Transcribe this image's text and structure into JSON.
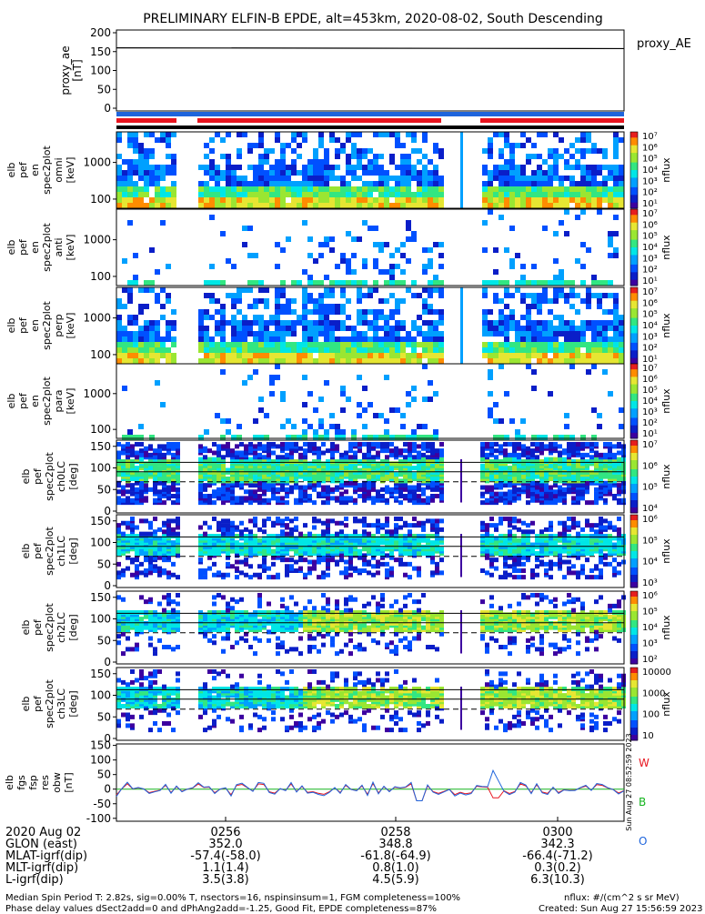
{
  "title": "PRELIMINARY ELFIN-B EPDE, alt=453km, 2020-08-02, South Descending",
  "panels": {
    "ae": {
      "ylabel": "proxy_ae\n[nT]",
      "right_label": "proxy_AE",
      "yticks": [
        "200",
        "150",
        "100",
        "50",
        "0"
      ]
    },
    "spec": [
      {
        "ylabel": "elb\npef\nen\nspec2plot\nomni\n[keV]",
        "yticks": [
          "1000",
          "100"
        ],
        "cbar_label": "nflux"
      },
      {
        "ylabel": "elb\npef\nen\nspec2plot\nanti\n[keV]",
        "yticks": [
          "1000",
          "100"
        ],
        "cbar_label": "nflux"
      },
      {
        "ylabel": "elb\npef\nen\nspec2plot\nperp\n[keV]",
        "yticks": [
          "1000",
          "100"
        ],
        "cbar_label": "nflux"
      },
      {
        "ylabel": "elb\npef\nen\nspec2plot\npara\n[keV]",
        "yticks": [
          "1000",
          "100"
        ],
        "cbar_label": "nflux"
      }
    ],
    "pa": [
      {
        "ylabel": "elb\npef\nspec2plot\nch0LC\n[deg]",
        "yticks": [
          "150",
          "100",
          "50",
          "0"
        ],
        "cbar_label": "nflux",
        "cbar_ticks": [
          "10⁷",
          "10⁶",
          "10⁵",
          "10⁴"
        ]
      },
      {
        "ylabel": "elb\npef\nspec2plot\nch1LC\n[deg]",
        "yticks": [
          "150",
          "100",
          "50",
          "0"
        ],
        "cbar_label": "nflux",
        "cbar_ticks": [
          "10⁶",
          "10⁵",
          "10⁴",
          "10³"
        ]
      },
      {
        "ylabel": "elb\npef\nspec2plot\nch2LC\n[deg]",
        "yticks": [
          "150",
          "100",
          "50",
          "0"
        ],
        "cbar_label": "nflux",
        "cbar_ticks": [
          "10⁶",
          "10⁵",
          "10⁴",
          "10³",
          "10²"
        ]
      },
      {
        "ylabel": "elb\npef\nspec2plot\nch3LC\n[deg]",
        "yticks": [
          "150",
          "100",
          "50",
          "0"
        ],
        "cbar_label": "nflux",
        "cbar_ticks": [
          "10000",
          "1000",
          "100",
          "10"
        ]
      }
    ],
    "spec_cbar_ticks": [
      "10⁷",
      "10⁶",
      "10⁵",
      "10⁴",
      "10³",
      "10²",
      "10¹"
    ],
    "fgs": {
      "ylabel": "elb\nfgs\nfsp\nres\nobw\n[nT]",
      "yticks": [
        "150",
        "100",
        "50",
        "0",
        "-50",
        "-100"
      ],
      "legend": [
        "W",
        "B",
        "O"
      ],
      "created_vertical": "Sun Aug 27 08:52:59 2023"
    }
  },
  "colors": {
    "red": "#e8141e",
    "blue": "#1e64dc",
    "green": "#14b41e",
    "axis": "#000000"
  },
  "footer": {
    "rows": [
      {
        "label": "2020 Aug 02",
        "values": [
          "0256",
          "0258",
          "0300"
        ]
      },
      {
        "label": "GLON (east)",
        "values": [
          "352.0",
          "348.8",
          "342.3"
        ]
      },
      {
        "label": "MLAT-igrf(dip)",
        "values": [
          "-57.4(-58.0)",
          "-61.8(-64.9)",
          "-66.4(-71.2)"
        ]
      },
      {
        "label": "MLT-igrf(dip)",
        "values": [
          "1.1(1.4)",
          "0.8(1.0)",
          "0.3(0.2)"
        ]
      },
      {
        "label": "L-igrf(dip)",
        "values": [
          "3.5(3.8)",
          "4.5(5.9)",
          "6.3(10.3)"
        ]
      }
    ],
    "note1": "Median Spin Period T: 2.82s, sig=0.00% T, nsectors=16, nspinsinsum=1, FGM completeness=100%",
    "note2": "Phase delay values dSect2add=0 and dPhAng2add=-1.25, Good Fit, EPDE completeness=87%",
    "units": "nflux: #/(cm^2 s sr MeV)",
    "created": "Created: Sun Aug 27 15:56:59 2023"
  }
}
